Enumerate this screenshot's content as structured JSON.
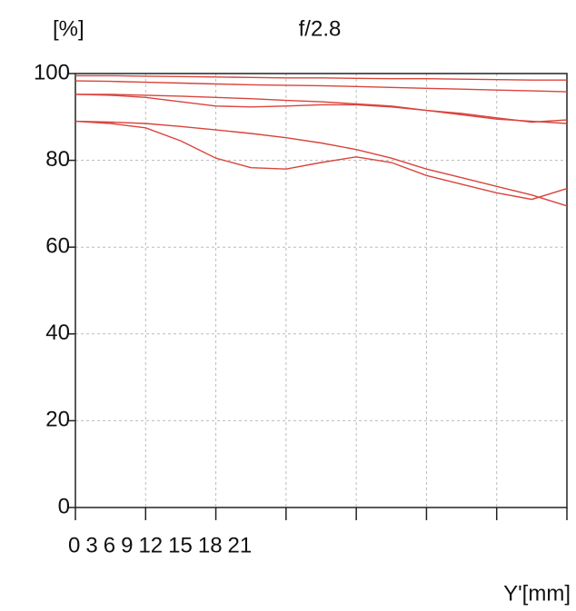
{
  "chart_data": {
    "type": "line",
    "title": "f/2.8",
    "y_label": "[%]",
    "x_label": "Y'[mm]",
    "x": [
      0,
      1.5,
      3,
      4.5,
      6,
      7.5,
      9,
      10.5,
      12,
      13.5,
      15,
      16.5,
      18,
      19.5,
      21
    ],
    "xlim": [
      0,
      21
    ],
    "xticks": [
      0,
      3,
      6,
      9,
      12,
      15,
      18,
      21
    ],
    "ylim": [
      0,
      100
    ],
    "yticks": [
      0,
      20,
      40,
      60,
      80,
      100
    ],
    "grid": true,
    "series": [
      {
        "color": "#d9443c",
        "values": [
          99.5,
          99.5,
          99.4,
          99.3,
          99.2,
          99.1,
          99,
          99,
          98.9,
          98.8,
          98.8,
          98.7,
          98.6,
          98.5,
          98.5
        ]
      },
      {
        "color": "#d9443c",
        "values": [
          98.3,
          98.2,
          98,
          97.8,
          97.6,
          97.4,
          97.3,
          97.2,
          97,
          96.8,
          96.6,
          96.4,
          96.2,
          96,
          95.8
        ]
      },
      {
        "color": "#d9443c",
        "values": [
          95.2,
          95.2,
          95,
          94.8,
          94.5,
          94.2,
          93.8,
          93.5,
          93,
          92.5,
          91.5,
          90.5,
          89.5,
          89,
          88.5
        ]
      },
      {
        "color": "#d9443c",
        "values": [
          95.2,
          95,
          94.5,
          93.5,
          92.5,
          92.3,
          92.5,
          92.8,
          92.8,
          92.3,
          91.5,
          90.8,
          89.8,
          88.8,
          89.3
        ]
      },
      {
        "color": "#d9443c",
        "values": [
          89,
          88.8,
          88.5,
          87.8,
          87,
          86.2,
          85.2,
          84,
          82.5,
          80.5,
          78,
          76,
          74,
          72,
          69.5
        ]
      },
      {
        "color": "#d9443c",
        "values": [
          89,
          88.5,
          87.5,
          84.5,
          80.5,
          78.3,
          78,
          79.5,
          80.8,
          79.5,
          76.5,
          74.5,
          72.5,
          71,
          73.5
        ]
      }
    ]
  }
}
